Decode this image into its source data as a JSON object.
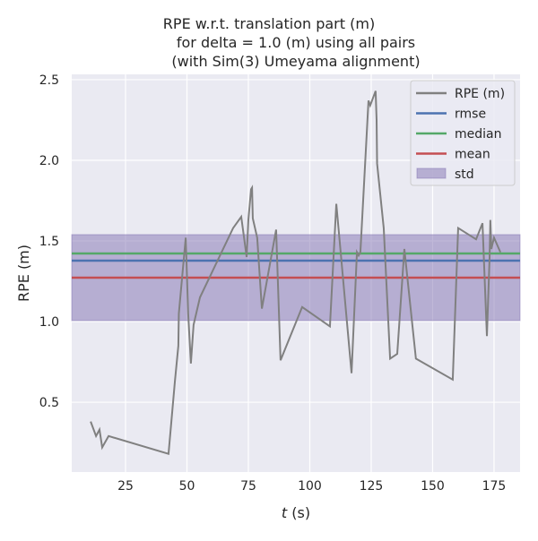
{
  "chart_data": {
    "type": "line",
    "title": [
      "RPE w.r.t. translation part (m)",
      "for delta = 1.0 (m) using all pairs",
      "(with Sim(3) Umeyama alignment)"
    ],
    "xlabel_italic": "t",
    "xlabel_rest": " (s)",
    "ylabel": "RPE (m)",
    "xlim": [
      3.1,
      185.6
    ],
    "ylim": [
      0.067,
      2.533
    ],
    "xticks": [
      25,
      50,
      75,
      100,
      125,
      150,
      175
    ],
    "yticks": [
      0.5,
      1.0,
      1.5,
      2.0,
      2.5
    ],
    "xtick_labels": [
      "25",
      "50",
      "75",
      "100",
      "125",
      "150",
      "175"
    ],
    "ytick_labels": [
      "0.5",
      "1.0",
      "1.5",
      "2.0",
      "2.5"
    ],
    "grid": true,
    "legend_position": "top-right",
    "series": [
      {
        "name": "RPE (m)",
        "color": "#808080",
        "x": [
          10.8,
          13.0,
          14.4,
          15.5,
          18.1,
          42.5,
          45.1,
          46.5,
          46.7,
          49.5,
          50.5,
          51.6,
          52.7,
          55.3,
          68.8,
          72.1,
          74.3,
          75.0,
          76.1,
          76.5,
          76.8,
          78.6,
          80.5,
          86.3,
          88.1,
          96.9,
          108.2,
          110.8,
          117.0,
          119.2,
          119.9,
          120.6,
          123.9,
          124.6,
          126.8,
          127.2,
          127.4,
          130.1,
          132.7,
          135.6,
          138.5,
          143.2,
          158.2,
          160.4,
          167.7,
          170.3,
          172.1,
          173.2,
          173.5,
          173.9,
          175.0,
          177.6
        ],
        "y": [
          0.38,
          0.29,
          0.33,
          0.22,
          0.29,
          0.18,
          0.63,
          0.85,
          1.05,
          1.52,
          1.05,
          0.74,
          0.98,
          1.15,
          1.58,
          1.65,
          1.4,
          1.63,
          1.82,
          1.83,
          1.64,
          1.52,
          1.08,
          1.57,
          0.76,
          1.09,
          0.97,
          1.73,
          0.68,
          1.43,
          1.41,
          1.43,
          2.37,
          2.34,
          2.43,
          2.25,
          1.98,
          1.58,
          0.77,
          0.8,
          1.45,
          0.77,
          0.64,
          1.58,
          1.51,
          1.61,
          0.91,
          1.4,
          1.63,
          1.45,
          1.52,
          1.43
        ]
      },
      {
        "name": "rmse",
        "color": "#4c72b0",
        "value": 1.378
      },
      {
        "name": "median",
        "color": "#55a868",
        "value": 1.422
      },
      {
        "name": "mean",
        "color": "#c44e52",
        "value": 1.272
      },
      {
        "name": "std",
        "color": "#8172b2",
        "range": [
          1.006,
          1.539
        ]
      }
    ]
  }
}
